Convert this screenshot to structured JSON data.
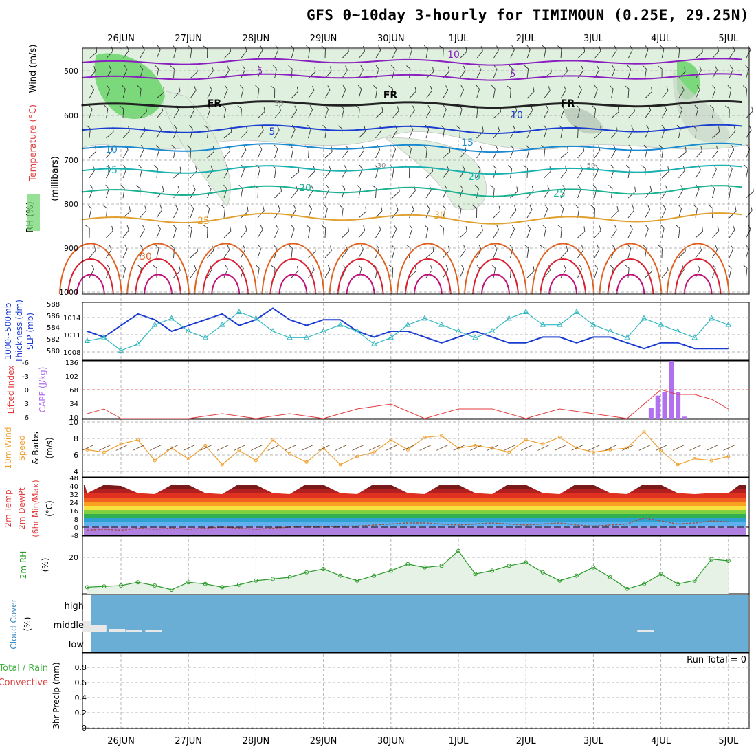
{
  "title": "GFS 0~10day 3-hourly for TIMIMOUN (0.25E, 29.25N)",
  "days": [
    "26JUN",
    "27JUN",
    "28JUN",
    "29JUN",
    "30JUN",
    "1JUL",
    "2JUL",
    "3JUL",
    "4JUL",
    "5JUL"
  ],
  "run_total": "Run Total = 0",
  "panels": {
    "upper": {
      "ylabel_rh": "RH (%)",
      "ylabel_temp": "Temperature (°C)",
      "ylabel_wind": "Wind (m/s)",
      "ylabel_mb": "(millibars)",
      "yticks": [
        "500",
        "600",
        "700",
        "800",
        "900",
        "1000"
      ],
      "contour_labels": [
        "10",
        "5",
        "5",
        "FR",
        "FR",
        "FR",
        "5",
        "10",
        "10",
        "15",
        "15",
        "20",
        "20",
        "25",
        "25",
        "30",
        "50",
        "30",
        "50"
      ]
    },
    "slp": {
      "label1": "1000~500mb",
      "label2": "Thickness (dm)",
      "label3": "SLP (mb)",
      "left_ticks": [
        "588",
        "586",
        "584",
        "582",
        "580"
      ],
      "right_ticks": [
        "1014",
        "1011",
        "1008"
      ]
    },
    "cape": {
      "label1": "Lifted Index",
      "label2": "CAPE (J/kg)",
      "left_ticks": [
        "-6",
        "-3",
        "0",
        "3",
        "6"
      ],
      "right_ticks": [
        "136",
        "102",
        "68",
        "34",
        "10"
      ]
    },
    "wind10": {
      "label1": "10m Wind",
      "label2": "Speed",
      "label3": "& Barbs",
      "label4": "(m/s)",
      "yticks": [
        "10",
        "8",
        "6",
        "4"
      ]
    },
    "temp2m": {
      "label1": "2m Temp",
      "label2": "2m DewPt",
      "label3": "(6hr Min/Max)",
      "label4": "(°C)",
      "yticks": [
        "48",
        "40",
        "32",
        "24",
        "16",
        "8",
        "0",
        "-8"
      ]
    },
    "rh2m": {
      "label1": "2m RH",
      "label2": "(%)",
      "yticks": [
        "20"
      ]
    },
    "cloud": {
      "label1": "Cloud Cover",
      "label2": "(%)",
      "levels": [
        "high",
        "middle",
        "low"
      ]
    },
    "precip": {
      "label1": "Total / Rain",
      "label2": "Convective",
      "label3": "3hr Precip (mm)",
      "yticks": [
        "0.8",
        "0.6",
        "0.4",
        "0.2",
        "0"
      ]
    }
  },
  "colors": {
    "rh_green": "#6ad46a",
    "temp_purple": "#8a1fbf",
    "slp_blue": "#1a3cd0",
    "thick_cyan": "#30b8c0",
    "li_red": "#e03b3b",
    "cape_violet": "#b070f0",
    "wind_orange": "#f0a030",
    "rh_line": "#2a9a2a",
    "cloud_blue": "#6aaed6"
  },
  "chart_data": [
    {
      "type": "line",
      "name": "slp",
      "ylim": [
        1006,
        1016
      ],
      "x_days": [
        0,
        0.25,
        0.5,
        0.75,
        1,
        1.25,
        1.5,
        1.75,
        2,
        2.25,
        2.5,
        2.75,
        3,
        3.25,
        3.5,
        3.75,
        4,
        4.25,
        4.5,
        4.75,
        5,
        5.25,
        5.5,
        5.75,
        6,
        6.25,
        6.5,
        6.75,
        7,
        7.25,
        7.5,
        7.75,
        8,
        8.25,
        8.5,
        8.75,
        9,
        9.25,
        9.5
      ],
      "series": [
        {
          "name": "SLP",
          "values": [
            1011,
            1010,
            1012,
            1014,
            1013,
            1011,
            1012,
            1013,
            1014,
            1012,
            1013,
            1015,
            1013,
            1012,
            1013,
            1013,
            1011,
            1010,
            1011,
            1011,
            1010,
            1009,
            1010,
            1011,
            1010,
            1009,
            1009,
            1010,
            1010,
            1009,
            1010,
            1010,
            1009,
            1008,
            1009,
            1009,
            1008,
            1008,
            1008
          ]
        },
        {
          "name": "Thickness",
          "values": [
            582.5,
            583,
            581,
            582,
            585,
            586,
            584,
            583,
            585,
            587,
            586,
            584,
            583,
            583,
            584,
            585,
            584,
            582,
            583,
            585,
            586,
            585,
            584,
            583,
            584,
            586,
            587,
            585,
            585,
            587,
            585,
            584,
            583,
            586,
            585,
            584,
            583,
            586,
            585
          ]
        }
      ]
    },
    {
      "type": "bar",
      "name": "cape",
      "ylim": [
        10,
        136
      ],
      "x_days": [
        8.35,
        8.45,
        8.55,
        8.65,
        8.75,
        8.85
      ],
      "values": [
        34,
        60,
        68,
        136,
        68,
        14
      ]
    },
    {
      "type": "line",
      "name": "lifted_index",
      "ylim": [
        -6,
        6
      ],
      "x_days": [
        0,
        0.25,
        0.5,
        1,
        1.5,
        2,
        2.5,
        3,
        3.5,
        4,
        4.5,
        5,
        5.5,
        6,
        6.5,
        7,
        7.5,
        8,
        8.25,
        8.5,
        8.75,
        9,
        9.25,
        9.5
      ],
      "values": [
        5,
        4,
        6,
        6,
        6,
        5,
        6,
        5,
        6,
        4,
        3,
        6,
        4,
        4,
        6,
        4,
        5,
        6,
        3,
        0,
        1,
        1,
        2,
        4
      ]
    },
    {
      "type": "line",
      "name": "wind10m_speed",
      "ylim": [
        3,
        10
      ],
      "x_days": [
        0,
        0.25,
        0.5,
        0.75,
        1,
        1.25,
        1.5,
        1.75,
        2,
        2.25,
        2.5,
        2.75,
        3,
        3.25,
        3.5,
        3.75,
        4,
        4.25,
        4.5,
        4.75,
        5,
        5.25,
        5.5,
        5.75,
        6,
        6.25,
        6.5,
        6.75,
        7,
        7.25,
        7.5,
        7.75,
        8,
        8.25,
        8.5,
        8.75,
        9,
        9.25,
        9.5
      ],
      "values": [
        6.3,
        6,
        7,
        7.5,
        5,
        6.5,
        5.2,
        6.8,
        4.5,
        6.2,
        5,
        7.5,
        5.8,
        4.8,
        6.5,
        4.5,
        5.5,
        6,
        7.5,
        6.3,
        7.8,
        8,
        6.5,
        6.8,
        6.5,
        6,
        7.5,
        7,
        7.8,
        6.5,
        6,
        6.3,
        6.5,
        8.5,
        6.2,
        4.5,
        5.2,
        5,
        5.5
      ]
    },
    {
      "type": "area",
      "name": "temp2m",
      "ylim": [
        -8,
        48
      ],
      "x_days": [
        0,
        0.25,
        0.5,
        0.75,
        1,
        1.25,
        1.5,
        1.75,
        2,
        2.25,
        2.5,
        2.75,
        3,
        3.25,
        3.5,
        3.75,
        4,
        4.25,
        4.5,
        4.75,
        5,
        5.25,
        5.5,
        5.75,
        6,
        6.25,
        6.5,
        6.75,
        7,
        7.25,
        7.5,
        7.75,
        8,
        8.25,
        8.5,
        8.75,
        9,
        9.25,
        9.5
      ],
      "series": [
        {
          "name": "Temp",
          "values": [
            33,
            41,
            40,
            33,
            32,
            41,
            41,
            33,
            32,
            42,
            41,
            33,
            32,
            42,
            41,
            33,
            32,
            42,
            41,
            33,
            32,
            42,
            41,
            33,
            32,
            42,
            41,
            33,
            32,
            42,
            41,
            33,
            32,
            42,
            41,
            33,
            32,
            33,
            33
          ]
        },
        {
          "name": "DewPt",
          "values": [
            -3,
            -2,
            -3,
            -1,
            -2,
            -1,
            -2,
            -1,
            0,
            -1,
            -2,
            -1,
            0,
            1,
            0,
            1,
            1,
            2,
            3,
            4,
            4,
            3,
            2,
            3,
            4,
            3,
            2,
            3,
            4,
            2,
            1,
            2,
            3,
            9,
            6,
            3,
            4,
            6,
            5
          ]
        }
      ]
    },
    {
      "type": "line",
      "name": "rh2m",
      "ylim": [
        0,
        35
      ],
      "x_days": [
        0,
        0.25,
        0.5,
        0.75,
        1,
        1.25,
        1.5,
        1.75,
        2,
        2.25,
        2.5,
        2.75,
        3,
        3.25,
        3.5,
        3.75,
        4,
        4.25,
        4.5,
        4.75,
        5,
        5.25,
        5.5,
        5.75,
        6,
        6.25,
        6.5,
        6.75,
        7,
        7.25,
        7.5,
        7.75,
        8,
        8.25,
        8.5,
        8.75,
        9,
        9.25,
        9.5
      ],
      "values": [
        4,
        4.5,
        5,
        7,
        5,
        2.5,
        7,
        6,
        4,
        5.5,
        8,
        9,
        10,
        13,
        15,
        11,
        8,
        11,
        14,
        18,
        16,
        17,
        26,
        12,
        14,
        17,
        19,
        13,
        8,
        11,
        16,
        10,
        3,
        6,
        12,
        6,
        8,
        21,
        20
      ]
    },
    {
      "type": "bar",
      "name": "cloud_middle",
      "ylim": [
        0,
        100
      ],
      "x_days": [
        -0.08,
        0.04,
        0.32,
        0.57,
        0.86,
        8.15
      ],
      "values": [
        40,
        25,
        10,
        5,
        5,
        5
      ]
    }
  ]
}
